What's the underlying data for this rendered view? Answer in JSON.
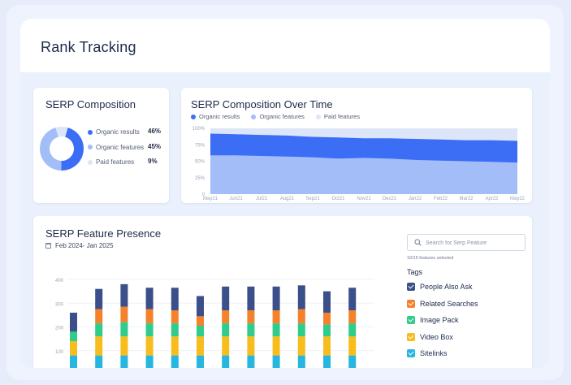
{
  "page": {
    "title": "Rank Tracking"
  },
  "colors": {
    "organic": "#3b6ef5",
    "organic_features": "#a3bdf8",
    "paid": "#dde5f9",
    "people_also_ask": "#3b4f8a",
    "related_searches": "#f5812b",
    "image_pack": "#2fcc8b",
    "video_box": "#f8bd1c",
    "sitelinks": "#26b6e0"
  },
  "composition": {
    "title": "SERP Composition",
    "items": [
      {
        "label": "Organic results",
        "pct": "46%",
        "color": "#3b6ef5"
      },
      {
        "label": "Organic features",
        "pct": "45%",
        "color": "#a3bdf8"
      },
      {
        "label": "Paid features",
        "pct": "9%",
        "color": "#dde5f9"
      }
    ]
  },
  "over_time": {
    "title": "SERP Composition Over Time",
    "legend": [
      "Organic results",
      "Organic features",
      "Paid features"
    ]
  },
  "presence": {
    "title": "SERP Feature Presence",
    "date_range": "Feb 2024- Jan 2025",
    "search_placeholder": "Search for Serp Feature",
    "selected_count": "10/15 features selected",
    "tags_heading": "Tags",
    "tags": [
      {
        "label": "People Also Ask",
        "color": "#3b4f8a"
      },
      {
        "label": "Related Searches",
        "color": "#f5812b"
      },
      {
        "label": "Image Pack",
        "color": "#2fcc8b"
      },
      {
        "label": "Video Box",
        "color": "#f8bd1c"
      },
      {
        "label": "Sitelinks",
        "color": "#26b6e0"
      }
    ]
  },
  "chart_data": [
    {
      "type": "pie",
      "title": "SERP Composition",
      "labels": [
        "Organic results",
        "Organic features",
        "Paid features"
      ],
      "values": [
        46,
        45,
        9
      ]
    },
    {
      "type": "area",
      "title": "SERP Composition Over Time",
      "categories": [
        "May21",
        "Jun21",
        "Jul21",
        "Aug21",
        "Sep21",
        "Oct21",
        "Nov21",
        "Dec21",
        "Jan22",
        "Feb22",
        "Mar22",
        "Apr22",
        "May22"
      ],
      "y_ticks": [
        "0",
        "25%",
        "50%",
        "75%",
        "100%"
      ],
      "ylim": [
        0,
        100
      ],
      "series": [
        {
          "name": "Organic features",
          "values": [
            59,
            59,
            58,
            57,
            56,
            54,
            55,
            54,
            52,
            51,
            50,
            49,
            48
          ]
        },
        {
          "name": "Organic results",
          "values": [
            92,
            91,
            90,
            89,
            87,
            86,
            85,
            85,
            84,
            83,
            82,
            82,
            81
          ]
        }
      ]
    },
    {
      "type": "bar",
      "title": "SERP Feature Presence",
      "stacked": true,
      "y_ticks": [
        "0",
        "100",
        "200",
        "300",
        "400"
      ],
      "ylim": [
        0,
        400
      ],
      "series": [
        {
          "name": "Sitelinks",
          "values": [
            80,
            80,
            80,
            80,
            80,
            80,
            80,
            80,
            80,
            80,
            80,
            80
          ]
        },
        {
          "name": "Video Box",
          "values": [
            60,
            80,
            80,
            80,
            80,
            80,
            80,
            80,
            80,
            80,
            80,
            80
          ]
        },
        {
          "name": "Image Pack",
          "values": [
            40,
            55,
            60,
            55,
            55,
            45,
            55,
            55,
            55,
            55,
            50,
            55
          ]
        },
        {
          "name": "Related Searches",
          "values": [
            0,
            60,
            65,
            60,
            55,
            40,
            55,
            55,
            55,
            60,
            50,
            55
          ]
        },
        {
          "name": "People Also Ask",
          "values": [
            80,
            85,
            95,
            90,
            95,
            85,
            100,
            100,
            100,
            100,
            90,
            95
          ]
        }
      ]
    }
  ]
}
